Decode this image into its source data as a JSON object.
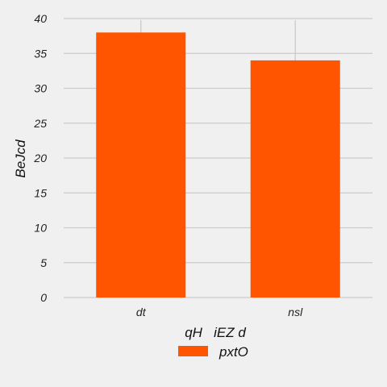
{
  "chart_data": {
    "type": "bar",
    "categories": [
      "dt",
      "nsl"
    ],
    "series": [
      {
        "name": "pxtO",
        "values": [
          38,
          34
        ]
      }
    ],
    "xlabel": "qH   iEZ d",
    "ylabel": "BeJcd",
    "ylim": [
      0,
      40
    ],
    "yticks": [
      0,
      5,
      10,
      15,
      20,
      25,
      30,
      35,
      40
    ],
    "grid": true,
    "legend_position": "bottom",
    "colors": {
      "bar": "#ff5500",
      "grid": "#cbcbcb",
      "background": "#f0f0f0"
    }
  }
}
